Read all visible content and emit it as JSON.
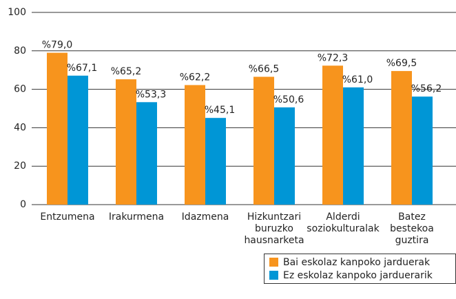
{
  "chart_data": {
    "type": "bar",
    "categories": [
      [
        "Entzumena"
      ],
      [
        "Irakurmena"
      ],
      [
        "Idazmena"
      ],
      [
        "Hizkuntzari",
        "buruzko",
        "hausnarketa"
      ],
      [
        "Alderdi",
        "soziokulturalak"
      ],
      [
        "Batez",
        "bestekoa",
        "guztira"
      ]
    ],
    "series": [
      {
        "name": "Bai eskolaz kanpoko jarduerak",
        "color": "#f7941d",
        "values": [
          79.0,
          65.2,
          62.2,
          66.5,
          72.3,
          69.5
        ],
        "value_labels": [
          "%79,0",
          "%65,2",
          "%62,2",
          "%66,5",
          "%72,3",
          "%69,5"
        ]
      },
      {
        "name": "Ez eskolaz kanpoko jarduerarik",
        "color": "#0096d6",
        "values": [
          67.1,
          53.3,
          45.1,
          50.6,
          61.0,
          56.2
        ],
        "value_labels": [
          "%67,1",
          "%53,3",
          "%45,1",
          "%50,6",
          "%61,0",
          "%56,2"
        ]
      }
    ],
    "ylim": [
      0,
      100
    ],
    "yticks": [
      0,
      20,
      40,
      60,
      80,
      100
    ],
    "grid": true,
    "legend": "bottom-right"
  }
}
